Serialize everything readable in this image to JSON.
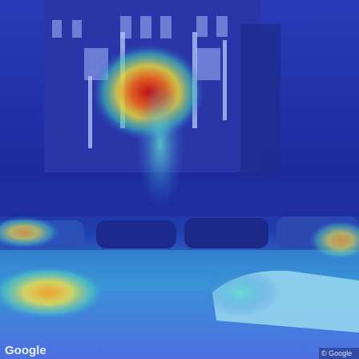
{
  "image": {
    "logo": "Google",
    "copyright": "© Google"
  }
}
